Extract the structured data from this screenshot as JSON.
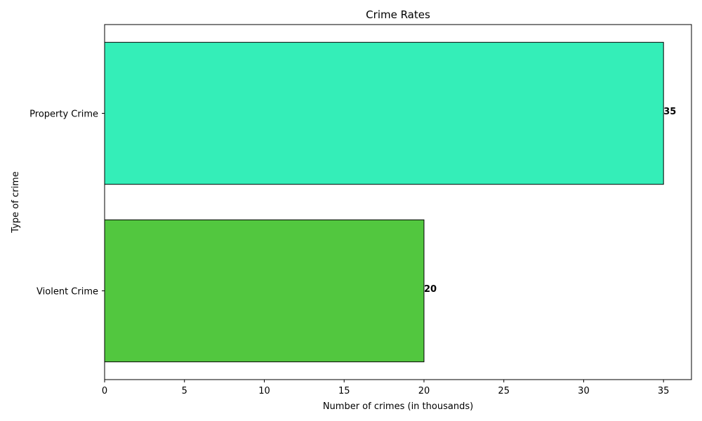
{
  "chart_data": {
    "type": "bar",
    "orientation": "horizontal",
    "title": "Crime Rates",
    "xlabel": "Number of crimes (in thousands)",
    "ylabel": "Type of crime",
    "categories": [
      "Violent Crime",
      "Property Crime"
    ],
    "values": [
      20,
      35
    ],
    "value_labels": [
      "20",
      "35"
    ],
    "colors": [
      "#52c73f",
      "#34eeb8"
    ],
    "xlim": [
      0,
      36.75
    ],
    "xticks": [
      0,
      5,
      10,
      15,
      20,
      25,
      30,
      35
    ],
    "grid": false,
    "legend": "none"
  }
}
